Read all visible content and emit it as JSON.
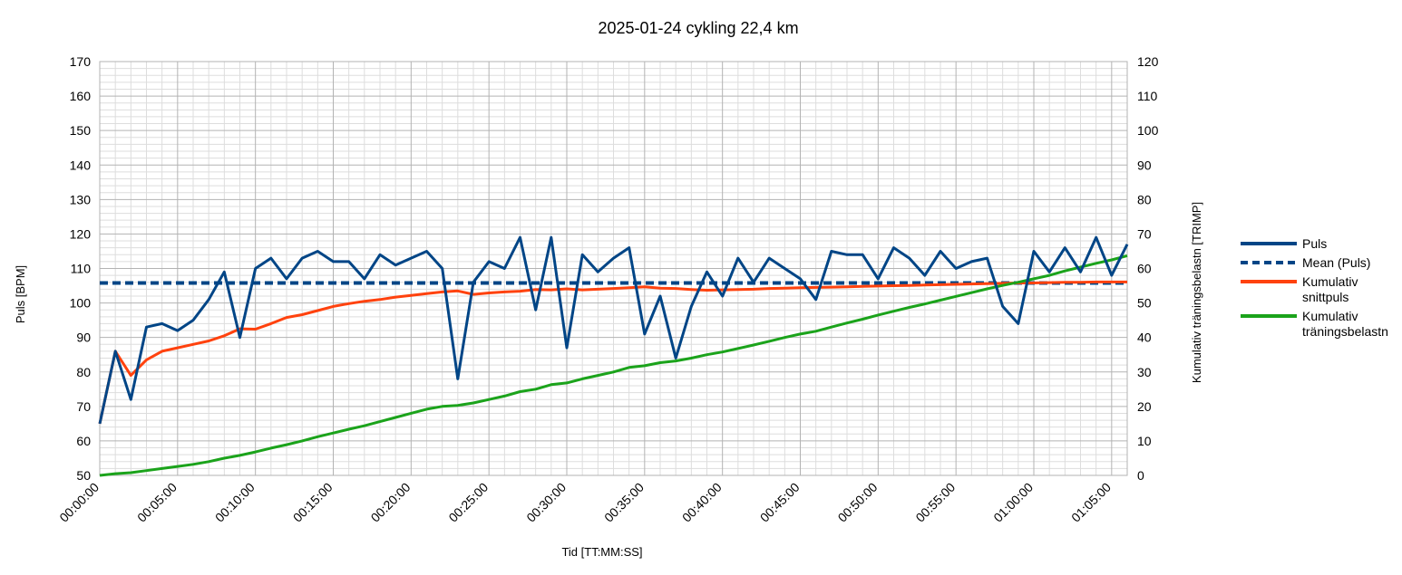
{
  "chart_data": {
    "type": "line",
    "title": "2025-01-24 cykling 22,4 km",
    "xlabel": "Tid [TT:MM:SS]",
    "ylabel": "Puls [BPM]",
    "y2label": "Kumulativ träningsbelastn [TRIMP]",
    "ylim": [
      50,
      170
    ],
    "y2lim": [
      0,
      120
    ],
    "xlim_minutes": [
      0,
      66
    ],
    "yticks": [
      "50",
      "60",
      "70",
      "80",
      "90",
      "100",
      "110",
      "120",
      "130",
      "140",
      "150",
      "160",
      "170"
    ],
    "y2ticks": [
      "0",
      "10",
      "20",
      "30",
      "40",
      "50",
      "60",
      "70",
      "80",
      "90",
      "100",
      "110",
      "120"
    ],
    "xticks": [
      "00:00:00",
      "00:05:00",
      "00:10:00",
      "00:15:00",
      "00:20:00",
      "00:25:00",
      "00:30:00",
      "00:35:00",
      "00:40:00",
      "00:45:00",
      "00:50:00",
      "00:55:00",
      "01:00:00",
      "01:05:00"
    ],
    "grid": true,
    "legend_position": "right",
    "colors": {
      "pulse": "#004586",
      "mean": "#004586",
      "cumavg": "#ff420e",
      "trimp": "#1ba31b",
      "grid_major": "#b3b3b3",
      "grid_minor": "#dddddd"
    },
    "x_minutes": [
      0,
      1,
      2,
      3,
      4,
      5,
      6,
      7,
      8,
      9,
      10,
      11,
      12,
      13,
      14,
      15,
      16,
      17,
      18,
      19,
      20,
      21,
      22,
      23,
      24,
      25,
      26,
      27,
      28,
      29,
      30,
      31,
      32,
      33,
      34,
      35,
      36,
      37,
      38,
      39,
      40,
      41,
      42,
      43,
      44,
      45,
      46,
      47,
      48,
      49,
      50,
      51,
      52,
      53,
      54,
      55,
      56,
      57,
      58,
      59,
      60,
      61,
      62,
      63,
      64,
      65,
      66
    ],
    "series": [
      {
        "name": "Puls",
        "axis": "left",
        "style": "solid",
        "values": [
          65,
          86,
          72,
          93,
          94,
          92,
          95,
          101,
          109,
          90,
          110,
          113,
          107,
          113,
          115,
          112,
          112,
          107,
          114,
          111,
          113,
          115,
          110,
          78,
          106,
          112,
          110,
          119,
          98,
          119,
          87,
          114,
          109,
          113,
          116,
          91,
          102,
          84,
          99,
          109,
          102,
          113,
          106,
          113,
          110,
          107,
          101,
          115,
          114,
          114,
          107,
          116,
          113,
          108,
          115,
          110,
          112,
          113,
          99,
          94,
          115,
          109,
          116,
          109,
          119,
          108,
          117
        ]
      },
      {
        "name": "Mean (Puls)",
        "axis": "left",
        "style": "dashed",
        "values": [
          105.8,
          105.8
        ]
      },
      {
        "name": "Kumulativ snittpuls",
        "axis": "left",
        "style": "solid",
        "values": [
          65,
          86,
          79,
          83.5,
          86,
          87,
          88,
          89,
          90.5,
          92.5,
          92.4,
          94,
          95.8,
          96.6,
          97.8,
          99,
          99.8,
          100.5,
          101,
          101.7,
          102.2,
          102.7,
          103.2,
          103.5,
          102.5,
          102.9,
          103.2,
          103.4,
          103.9,
          103.8,
          104.1,
          103.8,
          104,
          104.2,
          104.4,
          104.7,
          104.3,
          104.2,
          103.9,
          103.7,
          103.8,
          103.9,
          104,
          104.2,
          104.3,
          104.4,
          104.5,
          104.6,
          104.7,
          104.8,
          104.9,
          105,
          105.1,
          105.2,
          105.3,
          105.4,
          105.5,
          105.6,
          105.7,
          105.8,
          105.8,
          105.9,
          106,
          106,
          106.1,
          106.1,
          106.1
        ]
      },
      {
        "name": "Kumulativ träningsbelastn",
        "axis": "right",
        "style": "solid",
        "values": [
          0,
          0.5,
          0.8,
          1.4,
          2,
          2.6,
          3.2,
          4,
          5,
          5.8,
          6.8,
          7.9,
          8.9,
          10,
          11.2,
          12.3,
          13.4,
          14.4,
          15.6,
          16.8,
          18,
          19.2,
          20,
          20.3,
          21,
          22,
          23,
          24.3,
          25,
          26.3,
          26.8,
          28,
          29,
          30,
          31.3,
          31.8,
          32.7,
          33.2,
          34,
          35,
          35.8,
          36.8,
          37.8,
          38.9,
          40,
          41,
          41.8,
          43,
          44.2,
          45.3,
          46.5,
          47.6,
          48.7,
          49.7,
          50.8,
          51.9,
          53,
          54.1,
          55.1,
          56,
          57,
          58,
          59.3,
          60.4,
          61.5,
          62.5,
          63.7
        ]
      }
    ]
  },
  "legend": [
    {
      "line1": "Puls",
      "line2": ""
    },
    {
      "line1": "Mean (Puls)",
      "line2": ""
    },
    {
      "line1": "Kumulativ",
      "line2": "snittpuls"
    },
    {
      "line1": "Kumulativ",
      "line2": "träningsbelastn"
    }
  ]
}
